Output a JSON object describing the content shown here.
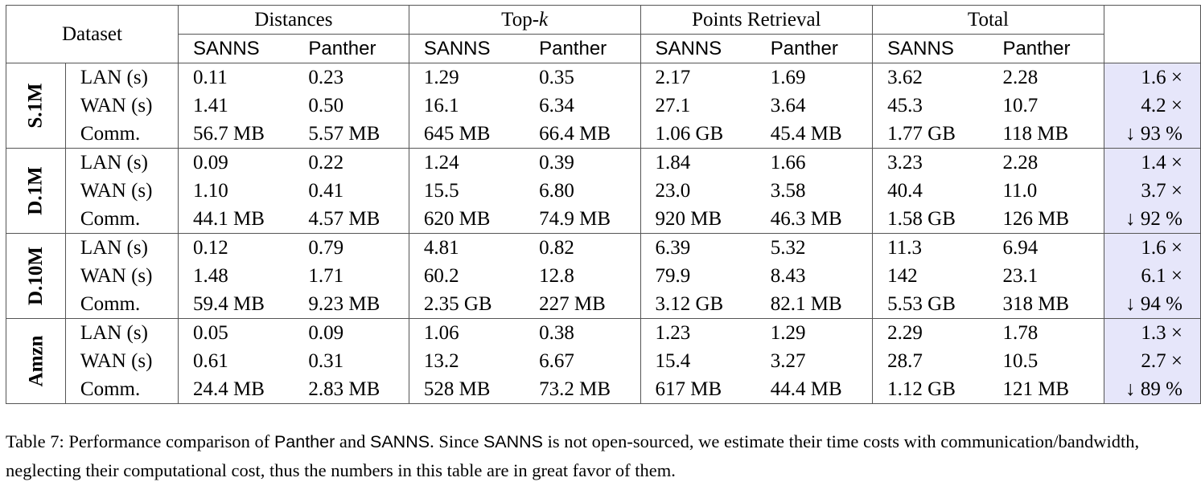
{
  "header": {
    "dataset": "Dataset",
    "groups": [
      "Distances",
      "Top-",
      "Points Retrieval",
      "Total"
    ],
    "topk_italic": "k",
    "sub": [
      "SANNS",
      "Panther"
    ]
  },
  "datasets": [
    {
      "name": "S.1M",
      "rows": [
        {
          "label": "LAN (s)",
          "values": [
            "0.11",
            "0.23",
            "1.29",
            "0.35",
            "2.17",
            "1.69",
            "3.62",
            "2.28"
          ],
          "speedup": "1.6 ×"
        },
        {
          "label": "WAN (s)",
          "values": [
            "1.41",
            "0.50",
            "16.1",
            "6.34",
            "27.1",
            "3.64",
            "45.3",
            "10.7"
          ],
          "speedup": "4.2 ×"
        },
        {
          "label": "Comm.",
          "values": [
            "56.7 MB",
            "5.57 MB",
            "645 MB",
            "66.4 MB",
            "1.06 GB",
            "45.4 MB",
            "1.77 GB",
            "118 MB"
          ],
          "speedup": "↓ 93 %"
        }
      ]
    },
    {
      "name": "D.1M",
      "rows": [
        {
          "label": "LAN (s)",
          "values": [
            "0.09",
            "0.22",
            "1.24",
            "0.39",
            "1.84",
            "1.66",
            "3.23",
            "2.28"
          ],
          "speedup": "1.4 ×"
        },
        {
          "label": "WAN (s)",
          "values": [
            "1.10",
            "0.41",
            "15.5",
            "6.80",
            "23.0",
            "3.58",
            "40.4",
            "11.0"
          ],
          "speedup": "3.7 ×"
        },
        {
          "label": "Comm.",
          "values": [
            "44.1 MB",
            "4.57 MB",
            "620 MB",
            "74.9 MB",
            "920 MB",
            "46.3 MB",
            "1.58 GB",
            "126 MB"
          ],
          "speedup": "↓ 92 %"
        }
      ]
    },
    {
      "name": "D.10M",
      "rows": [
        {
          "label": "LAN (s)",
          "values": [
            "0.12",
            "0.79",
            "4.81",
            "0.82",
            "6.39",
            "5.32",
            "11.3",
            "6.94"
          ],
          "speedup": "1.6 ×"
        },
        {
          "label": "WAN (s)",
          "values": [
            "1.48",
            "1.71",
            "60.2",
            "12.8",
            "79.9",
            "8.43",
            "142",
            "23.1"
          ],
          "speedup": "6.1 ×"
        },
        {
          "label": "Comm.",
          "values": [
            "59.4 MB",
            "9.23 MB",
            "2.35 GB",
            "227 MB",
            "3.12 GB",
            "82.1 MB",
            "5.53 GB",
            "318 MB"
          ],
          "speedup": "↓ 94 %"
        }
      ]
    },
    {
      "name": "Amzn",
      "rows": [
        {
          "label": "LAN (s)",
          "values": [
            "0.05",
            "0.09",
            "1.06",
            "0.38",
            "1.23",
            "1.29",
            "2.29",
            "1.78"
          ],
          "speedup": "1.3 ×"
        },
        {
          "label": "WAN (s)",
          "values": [
            "0.61",
            "0.31",
            "13.2",
            "6.67",
            "15.4",
            "3.27",
            "28.7",
            "10.5"
          ],
          "speedup": "2.7 ×"
        },
        {
          "label": "Comm.",
          "values": [
            "24.4 MB",
            "2.83 MB",
            "528 MB",
            "73.2 MB",
            "617 MB",
            "44.4 MB",
            "1.12 GB",
            "121 MB"
          ],
          "speedup": "↓ 89 %"
        }
      ]
    }
  ],
  "caption": {
    "prefix": "Table 7: Performance comparison of ",
    "panther": "Panther",
    "and": " and ",
    "sanns": "SANNS",
    "mid": ". Since ",
    "sanns2": "SANNS",
    "rest": " is not open-sourced, we estimate their time costs with communication/bandwidth, neglecting their computational cost, thus the numbers in this table are in great favor of them."
  },
  "colors": {
    "highlight": "#e6e6fa"
  }
}
